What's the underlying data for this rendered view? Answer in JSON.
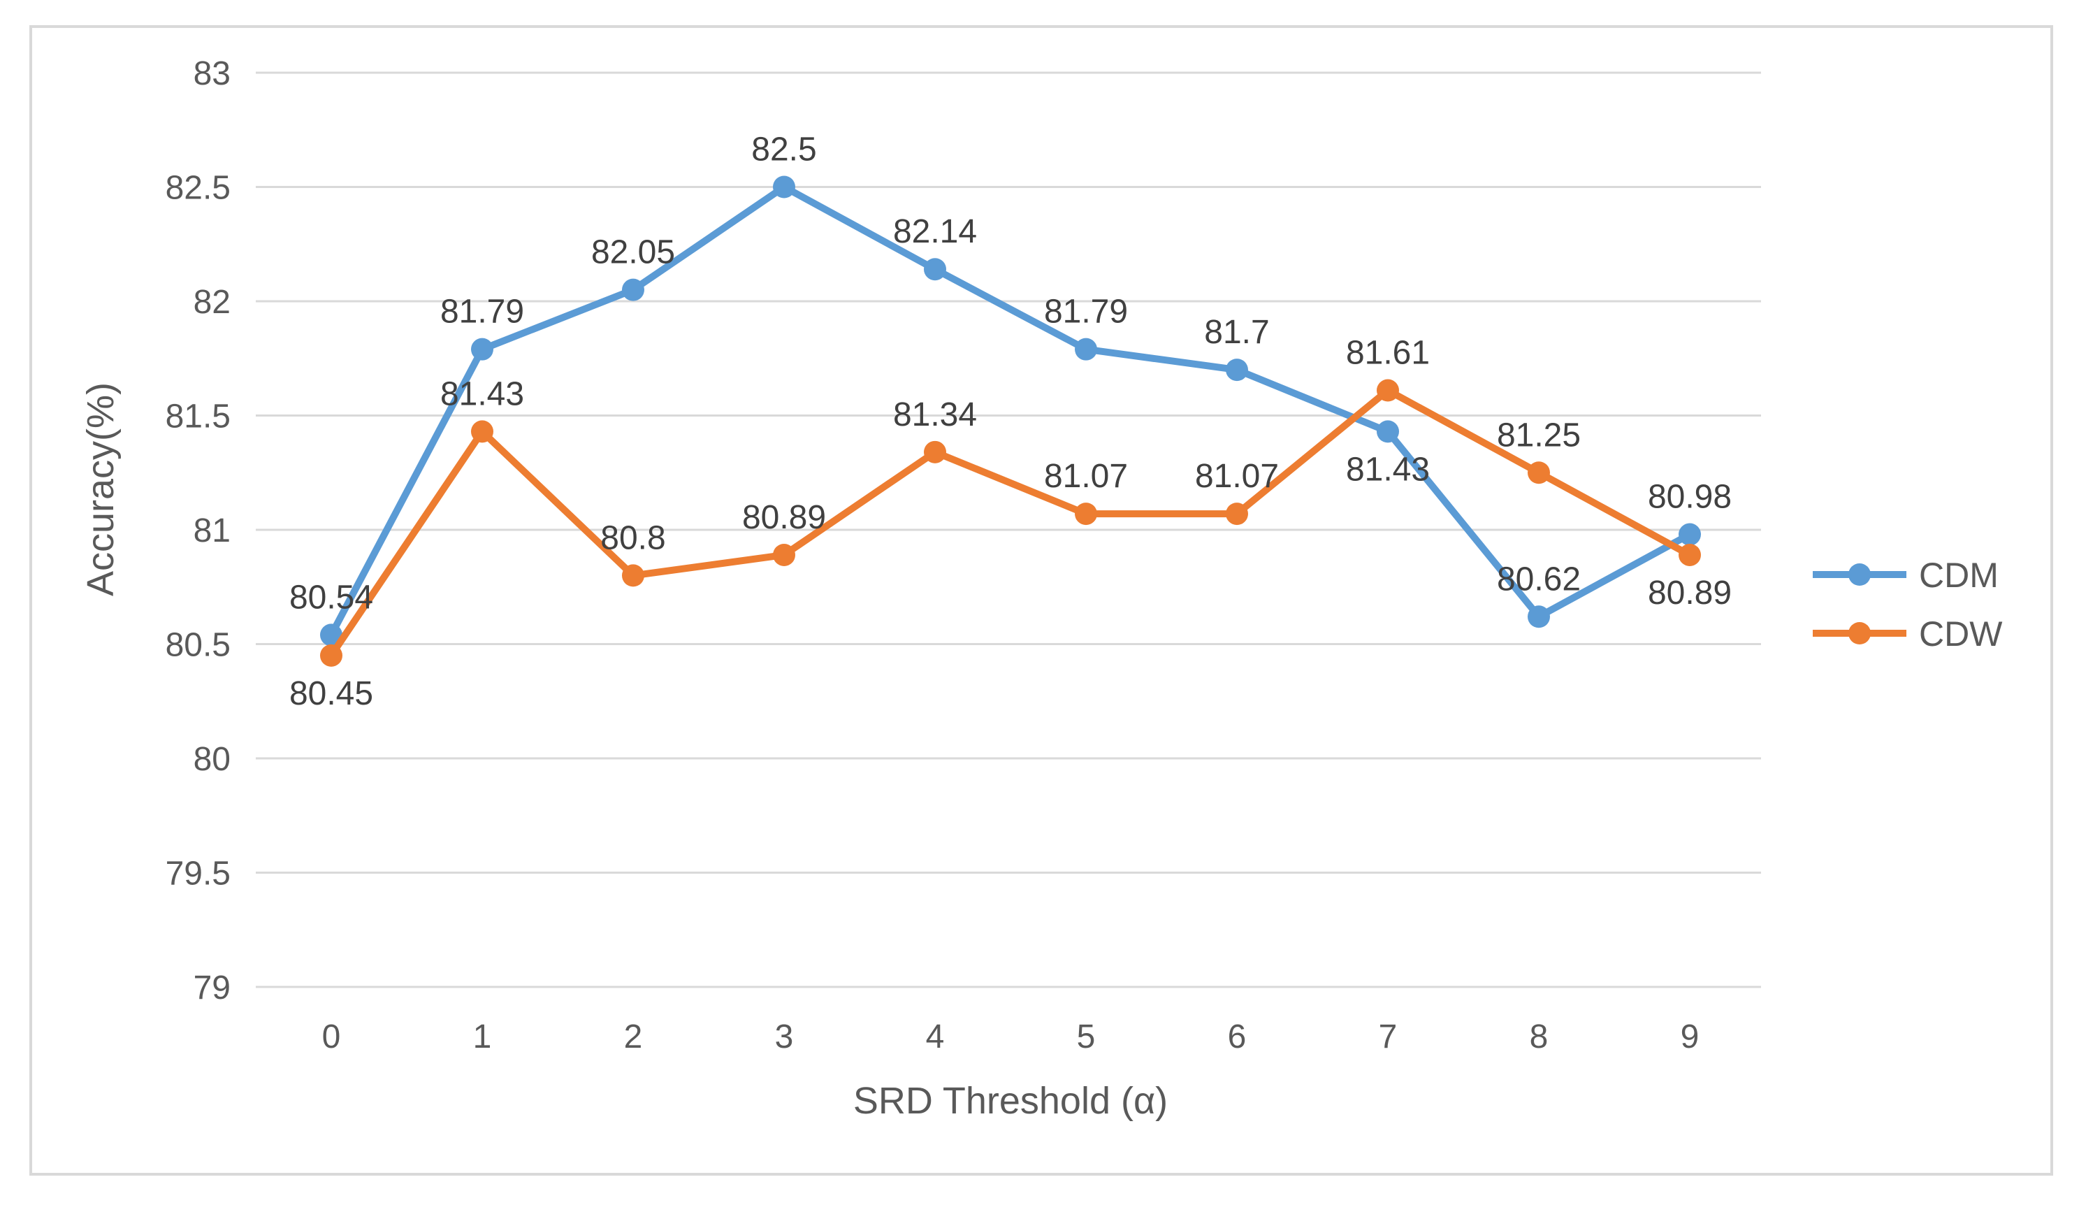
{
  "chart_data": {
    "type": "line",
    "title": "",
    "xlabel": "SRD Threshold (α)",
    "ylabel": "Accuracy(%)",
    "categories": [
      "0",
      "1",
      "2",
      "3",
      "4",
      "5",
      "6",
      "7",
      "8",
      "9"
    ],
    "ylim": [
      79,
      83
    ],
    "yticks": [
      79,
      79.5,
      80,
      80.5,
      81,
      81.5,
      82,
      82.5,
      83
    ],
    "ytick_labels": [
      "79",
      "79.5",
      "80",
      "80.5",
      "81",
      "81.5",
      "82",
      "82.5",
      "83"
    ],
    "grid": true,
    "legend_position": "right",
    "series": [
      {
        "name": "CDM",
        "color": "#5b9bd5",
        "values": [
          80.54,
          81.79,
          82.05,
          82.5,
          82.14,
          81.79,
          81.7,
          81.43,
          80.62,
          80.98
        ],
        "labels": [
          "80.54",
          "81.79",
          "82.05",
          "82.5",
          "82.14",
          "81.79",
          "81.7",
          "81.43",
          "80.62",
          "80.98"
        ],
        "label_positions": [
          "above",
          "above",
          "above",
          "above",
          "above",
          "above",
          "above",
          "below",
          "above",
          "above"
        ]
      },
      {
        "name": "CDW",
        "color": "#ed7d31",
        "values": [
          80.45,
          81.43,
          80.8,
          80.89,
          81.34,
          81.07,
          81.07,
          81.61,
          81.25,
          80.89
        ],
        "labels": [
          "80.45",
          "81.43",
          "80.8",
          "80.89",
          "81.34",
          "81.07",
          "81.07",
          "81.61",
          "81.25",
          "80.89"
        ],
        "label_positions": [
          "below",
          "above",
          "above",
          "above",
          "above",
          "above",
          "above",
          "above",
          "above",
          "below"
        ]
      }
    ]
  }
}
